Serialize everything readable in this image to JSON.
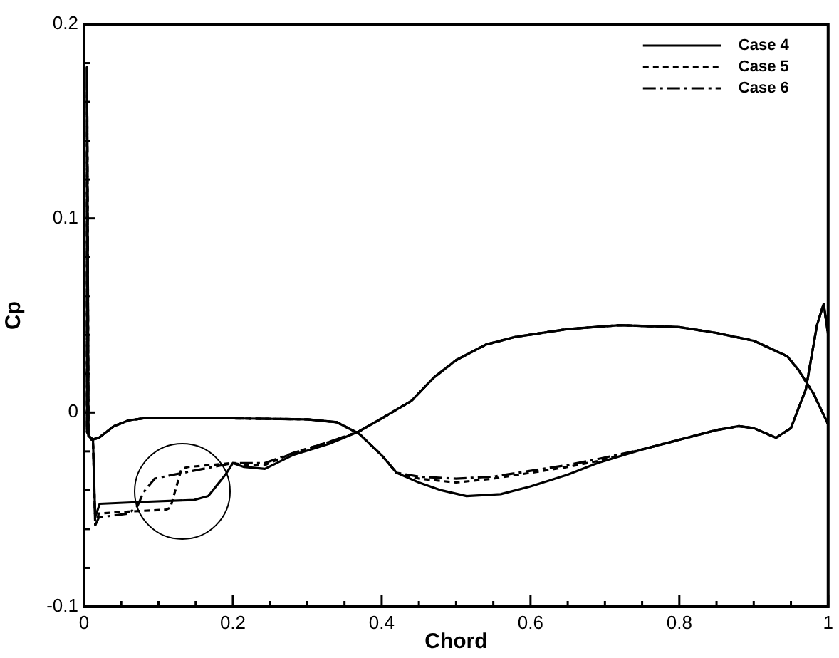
{
  "chart_data": {
    "type": "line",
    "xlabel": "Chord",
    "ylabel": "Cp",
    "xlim": [
      0,
      1
    ],
    "ylim": [
      -0.1,
      0.2
    ],
    "xticks": [
      0,
      {
        "value": 0.05,
        "label": null
      },
      {
        "value": 0.1,
        "label": null
      },
      {
        "value": 0.15,
        "label": null
      },
      0.2,
      {
        "value": 0.25,
        "label": null
      },
      {
        "value": 0.3,
        "label": null
      },
      {
        "value": 0.35,
        "label": null
      },
      0.4,
      {
        "value": 0.45,
        "label": null
      },
      {
        "value": 0.5,
        "label": null
      },
      {
        "value": 0.55,
        "label": null
      },
      0.6,
      {
        "value": 0.65,
        "label": null
      },
      {
        "value": 0.7,
        "label": null
      },
      {
        "value": 0.75,
        "label": null
      },
      0.8,
      {
        "value": 0.85,
        "label": null
      },
      {
        "value": 0.9,
        "label": null
      },
      {
        "value": 0.95,
        "label": null
      },
      1
    ],
    "yticks": [
      -0.1,
      {
        "value": -0.08,
        "label": null
      },
      {
        "value": -0.06,
        "label": null
      },
      {
        "value": -0.04,
        "label": null
      },
      {
        "value": -0.02,
        "label": null
      },
      0,
      {
        "value": 0.02,
        "label": null
      },
      {
        "value": 0.04,
        "label": null
      },
      {
        "value": 0.06,
        "label": null
      },
      {
        "value": 0.08,
        "label": null
      },
      0.1,
      {
        "value": 0.12,
        "label": null
      },
      {
        "value": 0.14,
        "label": null
      },
      {
        "value": 0.16,
        "label": null
      },
      {
        "value": 0.18,
        "label": null
      },
      0.2
    ],
    "grid": false,
    "legend": "top right",
    "marker": "none",
    "series": [
      {
        "name": "Case 4",
        "color": "#000000",
        "line_style": "solid",
        "x": [
          1,
          0.98,
          0.96,
          0.945,
          0.9,
          0.85,
          0.8,
          0.72,
          0.65,
          0.58,
          0.54,
          0.5,
          0.47,
          0.44,
          0.4,
          0.368,
          0.33,
          0.28,
          0.243,
          0.215,
          0.2,
          0.19,
          0.167,
          0.148,
          0.08,
          0.021,
          0.015,
          0.012,
          0.006,
          0.004,
          0.004,
          0.01,
          0.02,
          0.04,
          0.06,
          0.08,
          0.2,
          0.3,
          0.34,
          0.37,
          0.4,
          0.42,
          0.45,
          0.48,
          0.514,
          0.56,
          0.6,
          0.65,
          0.69,
          0.75,
          0.8,
          0.85,
          0.88,
          0.9,
          0.93,
          0.95,
          0.97,
          0.985,
          0.994,
          1,
          1
        ],
        "values": [
          -0.006,
          0.01,
          0.022,
          0.029,
          0.037,
          0.041,
          0.044,
          0.045,
          0.043,
          0.039,
          0.035,
          0.027,
          0.018,
          0.006,
          -0.003,
          -0.01,
          -0.016,
          -0.022,
          -0.029,
          -0.028,
          -0.026,
          -0.032,
          -0.043,
          -0.045,
          -0.046,
          -0.047,
          -0.054,
          -0.014,
          -0.012,
          0.178,
          -0.01,
          -0.014,
          -0.013,
          -0.007,
          -0.004,
          -0.003,
          -0.003,
          -0.0035,
          -0.005,
          -0.011,
          -0.022,
          -0.031,
          -0.036,
          -0.04,
          -0.043,
          -0.042,
          -0.038,
          -0.032,
          -0.026,
          -0.019,
          -0.014,
          -0.009,
          -0.007,
          -0.008,
          -0.013,
          -0.008,
          0.012,
          0.045,
          0.056,
          0.04,
          -0.005
        ]
      },
      {
        "name": "Case 5",
        "color": "#000000",
        "line_style": "dashed",
        "x": [
          1,
          0.98,
          0.96,
          0.945,
          0.9,
          0.85,
          0.8,
          0.72,
          0.65,
          0.58,
          0.54,
          0.5,
          0.47,
          0.44,
          0.4,
          0.368,
          0.33,
          0.28,
          0.243,
          0.215,
          0.2,
          0.17,
          0.14,
          0.131,
          0.116,
          0.11,
          0.06,
          0.02,
          0.015,
          0.012,
          0.006,
          0.004,
          0.004,
          0.01,
          0.02,
          0.04,
          0.06,
          0.08,
          0.2,
          0.3,
          0.34,
          0.37,
          0.4,
          0.42,
          0.45,
          0.5,
          0.55,
          0.6,
          0.65,
          0.69,
          0.75,
          0.8,
          0.85,
          0.88,
          0.9,
          0.93,
          0.95,
          0.97,
          0.985,
          0.994,
          1,
          1
        ],
        "values": [
          -0.006,
          0.01,
          0.022,
          0.029,
          0.037,
          0.041,
          0.044,
          0.045,
          0.043,
          0.039,
          0.035,
          0.027,
          0.018,
          0.006,
          -0.003,
          -0.01,
          -0.015,
          -0.021,
          -0.027,
          -0.027,
          -0.026,
          -0.027,
          -0.028,
          -0.029,
          -0.049,
          -0.05,
          -0.051,
          -0.052,
          -0.058,
          -0.014,
          -0.012,
          0.178,
          -0.01,
          -0.014,
          -0.013,
          -0.007,
          -0.004,
          -0.003,
          -0.003,
          -0.0035,
          -0.005,
          -0.011,
          -0.022,
          -0.031,
          -0.034,
          -0.036,
          -0.034,
          -0.031,
          -0.028,
          -0.025,
          -0.019,
          -0.014,
          -0.009,
          -0.007,
          -0.008,
          -0.013,
          -0.008,
          0.012,
          0.045,
          0.056,
          0.04,
          -0.005
        ]
      },
      {
        "name": "Case 6",
        "color": "#000000",
        "line_style": "dashdot",
        "x": [
          1,
          0.98,
          0.96,
          0.945,
          0.9,
          0.85,
          0.8,
          0.72,
          0.65,
          0.58,
          0.54,
          0.5,
          0.47,
          0.44,
          0.4,
          0.368,
          0.33,
          0.28,
          0.243,
          0.2,
          0.16,
          0.12,
          0.095,
          0.08,
          0.072,
          0.06,
          0.02,
          0.015,
          0.012,
          0.006,
          0.004,
          0.004,
          0.01,
          0.02,
          0.04,
          0.06,
          0.08,
          0.2,
          0.3,
          0.34,
          0.37,
          0.4,
          0.42,
          0.45,
          0.5,
          0.55,
          0.6,
          0.65,
          0.69,
          0.75,
          0.8,
          0.85,
          0.88,
          0.9,
          0.93,
          0.95,
          0.97,
          0.985,
          0.994,
          1,
          1
        ],
        "values": [
          -0.006,
          0.01,
          0.022,
          0.029,
          0.037,
          0.041,
          0.044,
          0.045,
          0.043,
          0.039,
          0.035,
          0.027,
          0.018,
          0.006,
          -0.003,
          -0.01,
          -0.015,
          -0.021,
          -0.026,
          -0.026,
          -0.029,
          -0.032,
          -0.034,
          -0.041,
          -0.048,
          -0.052,
          -0.054,
          -0.058,
          -0.014,
          -0.012,
          0.178,
          -0.01,
          -0.014,
          -0.013,
          -0.007,
          -0.004,
          -0.003,
          -0.003,
          -0.0035,
          -0.005,
          -0.011,
          -0.022,
          -0.031,
          -0.033,
          -0.034,
          -0.033,
          -0.03,
          -0.027,
          -0.024,
          -0.019,
          -0.014,
          -0.009,
          -0.007,
          -0.008,
          -0.013,
          -0.008,
          0.012,
          0.045,
          0.056,
          0.04,
          -0.005
        ]
      }
    ]
  }
}
